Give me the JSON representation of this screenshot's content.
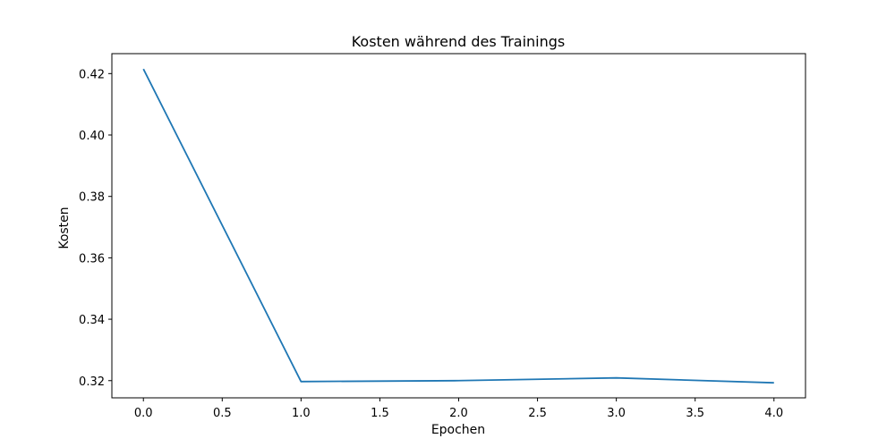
{
  "chart_data": {
    "type": "line",
    "title": "Kosten während des Trainings",
    "xlabel": "Epochen",
    "ylabel": "Kosten",
    "x": [
      0,
      1,
      2,
      3,
      4
    ],
    "series": [
      {
        "values": [
          0.4215,
          0.3197,
          0.32,
          0.3209,
          0.3193
        ]
      }
    ],
    "xlim": [
      -0.2,
      4.2
    ],
    "ylim": [
      0.3144,
      0.4265
    ],
    "xticks": [
      0.0,
      0.5,
      1.0,
      1.5,
      2.0,
      2.5,
      3.0,
      3.5,
      4.0
    ],
    "xtick_labels": [
      "0.0",
      "0.5",
      "1.0",
      "1.5",
      "2.0",
      "2.5",
      "3.0",
      "3.5",
      "4.0"
    ],
    "yticks": [
      0.32,
      0.34,
      0.36,
      0.38,
      0.4,
      0.42
    ],
    "ytick_labels": [
      "0.32",
      "0.34",
      "0.36",
      "0.38",
      "0.40",
      "0.42"
    ],
    "grid": false,
    "line_color": "#1f77b4"
  }
}
